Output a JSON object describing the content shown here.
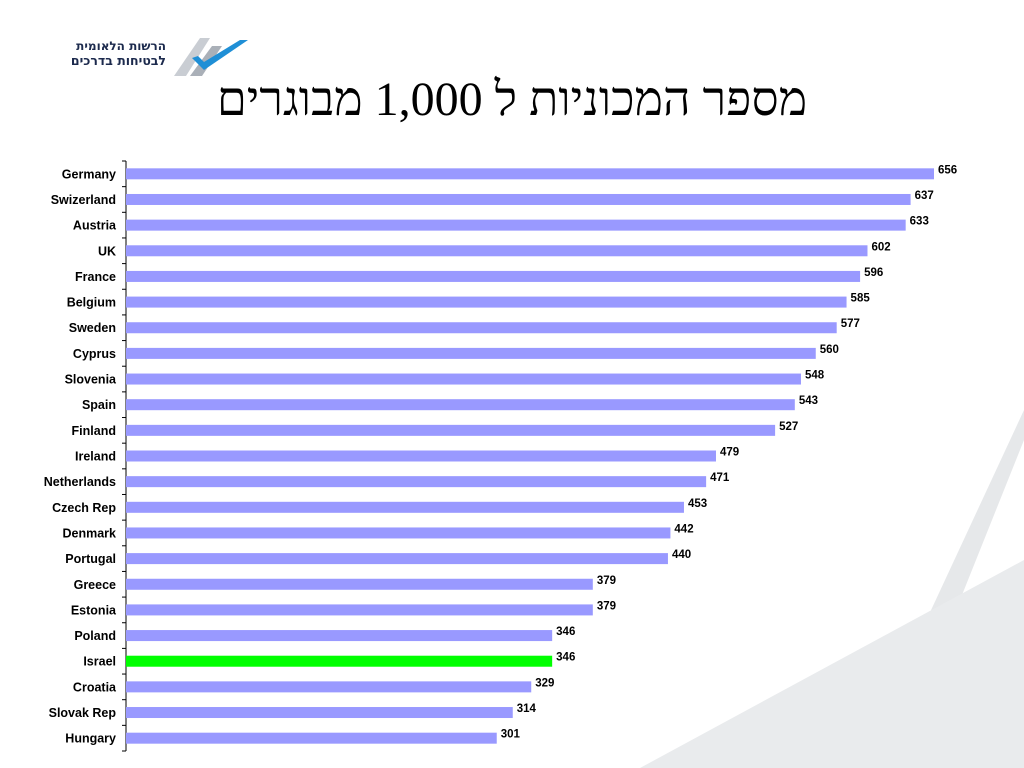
{
  "logo": {
    "line1": "הרשות הלאומית",
    "line2": "לבטיחות בדרכים"
  },
  "slide_title": "מספר המכוניות ל 1,000 מבוגרים",
  "colors": {
    "bar": "#9999ff",
    "highlight": "#00ff00",
    "axis": "#000000",
    "decor": "#e6e8ea",
    "logo_dark": "#1c2a4d",
    "logo_accent": "#1f8fd6"
  },
  "chart_data": {
    "type": "bar",
    "orientation": "horizontal",
    "title": "מספר המכוניות ל 1,000 מבוגרים",
    "xlabel": "",
    "ylabel": "",
    "grid": false,
    "xlim": [
      0,
      656
    ],
    "highlight_category": "Israel",
    "categories": [
      "Germany",
      "Swizerland",
      "Austria",
      "UK",
      "France",
      "Belgium",
      "Sweden",
      "Cyprus",
      "Slovenia",
      "Spain",
      "Finland",
      "Ireland",
      "Netherlands",
      "Czech Rep",
      "Denmark",
      "Portugal",
      "Greece",
      "Estonia",
      "Poland",
      "Israel",
      "Croatia",
      "Slovak Rep",
      "Hungary"
    ],
    "values": [
      656,
      637,
      633,
      602,
      596,
      585,
      577,
      560,
      548,
      543,
      527,
      479,
      471,
      453,
      442,
      440,
      379,
      379,
      346,
      346,
      329,
      314,
      301
    ]
  }
}
